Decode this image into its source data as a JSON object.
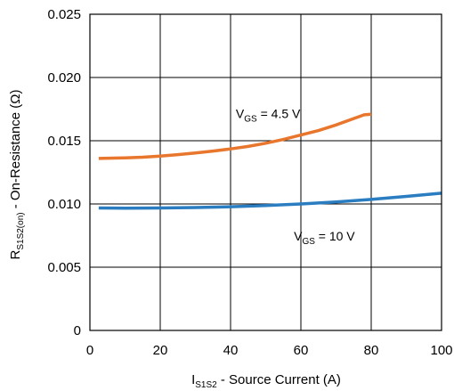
{
  "chart_data": {
    "type": "line",
    "title": "",
    "xlabel": {
      "main": "I",
      "sub": "S1S2",
      "rest": " - Source Current (A)"
    },
    "ylabel": {
      "main": "R",
      "sub": "S1S2(on)",
      "rest": " - On-Resistance (Ω)"
    },
    "xlim": [
      0,
      100
    ],
    "ylim": [
      0,
      0.025
    ],
    "xticks": [
      0,
      20,
      40,
      60,
      80,
      100
    ],
    "xtick_labels": [
      "0",
      "20",
      "40",
      "60",
      "80",
      "100"
    ],
    "yticks": [
      0,
      0.005,
      0.01,
      0.015,
      0.02,
      0.025
    ],
    "ytick_labels": [
      "0",
      "0.005",
      "0.010",
      "0.015",
      "0.020",
      "0.025"
    ],
    "grid": true,
    "series": [
      {
        "color": "#e8762c",
        "x": [
          2.5,
          10,
          15,
          20,
          25,
          30,
          35,
          40,
          45,
          50,
          55,
          60,
          65,
          70,
          75,
          78,
          80
        ],
        "y": [
          0.0136,
          0.01365,
          0.0137,
          0.01378,
          0.0139,
          0.01403,
          0.01418,
          0.01435,
          0.01455,
          0.0148,
          0.0151,
          0.01545,
          0.0158,
          0.01625,
          0.01675,
          0.01705,
          0.0171
        ]
      },
      {
        "color": "#2a7dc0",
        "x": [
          2.5,
          10,
          20,
          30,
          40,
          50,
          60,
          70,
          80,
          90,
          100
        ],
        "y": [
          0.00968,
          0.00966,
          0.00968,
          0.00972,
          0.00978,
          0.00988,
          0.01,
          0.01016,
          0.01036,
          0.0106,
          0.01085
        ]
      }
    ],
    "annotations": [
      {
        "main": "V",
        "sub": "GS",
        "rest": " = 4.5 V",
        "at": [
          41.5,
          0.0168
        ]
      },
      {
        "main": "V",
        "sub": "GS",
        "rest": " = 10 V",
        "at": [
          58,
          0.0071
        ]
      }
    ]
  }
}
